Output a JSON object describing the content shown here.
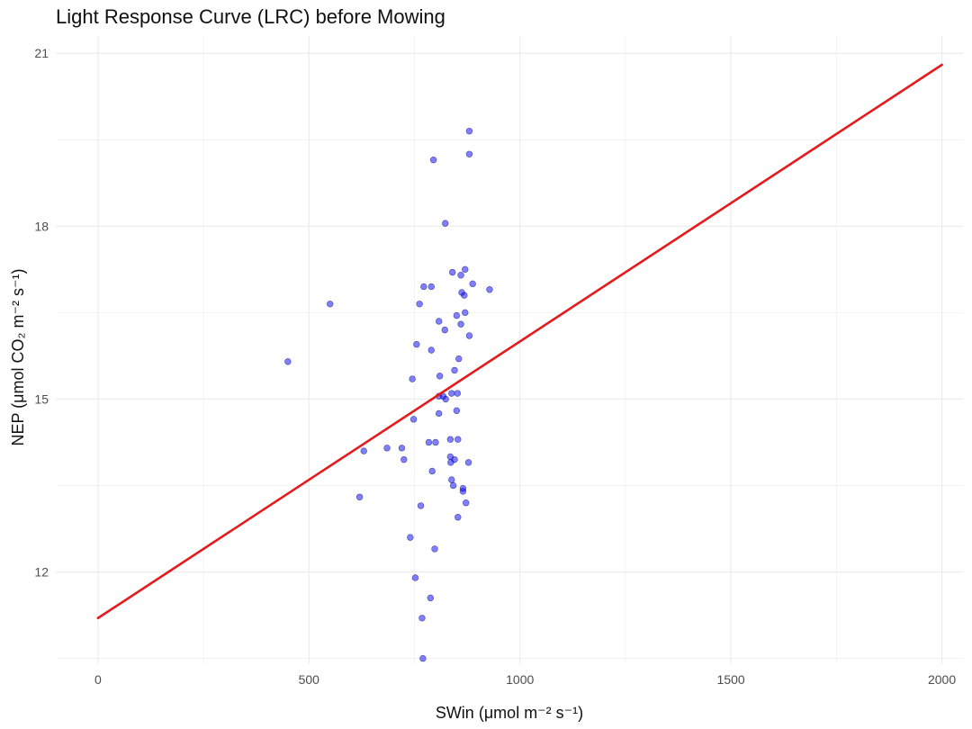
{
  "chart_data": {
    "type": "scatter",
    "title": "Light Response Curve (LRC) before Mowing",
    "xlabel": "SWin (μmol m⁻² s⁻¹)",
    "ylabel": "NEP (μmol CO₂ m⁻² s⁻¹)",
    "xlim": [
      -100,
      2050
    ],
    "ylim": [
      10.4,
      21.3
    ],
    "x_ticks": [
      0,
      500,
      1000,
      1500,
      2000
    ],
    "y_ticks": [
      12,
      15,
      18,
      21
    ],
    "grid": true,
    "colors": {
      "points": "#0000ff",
      "line": "#e41a1c",
      "grid": "#ebebeb"
    },
    "points": [
      {
        "x": 450,
        "y": 15.65
      },
      {
        "x": 550,
        "y": 16.65
      },
      {
        "x": 620,
        "y": 13.3
      },
      {
        "x": 630,
        "y": 14.1
      },
      {
        "x": 685,
        "y": 14.15
      },
      {
        "x": 720,
        "y": 14.15
      },
      {
        "x": 725,
        "y": 13.95
      },
      {
        "x": 740,
        "y": 12.6
      },
      {
        "x": 745,
        "y": 15.35
      },
      {
        "x": 748,
        "y": 14.65
      },
      {
        "x": 752,
        "y": 11.9
      },
      {
        "x": 755,
        "y": 15.95
      },
      {
        "x": 762,
        "y": 16.65
      },
      {
        "x": 765,
        "y": 13.15
      },
      {
        "x": 768,
        "y": 11.2
      },
      {
        "x": 770,
        "y": 10.5
      },
      {
        "x": 772,
        "y": 16.95
      },
      {
        "x": 784,
        "y": 14.25
      },
      {
        "x": 788,
        "y": 11.55
      },
      {
        "x": 790,
        "y": 16.95
      },
      {
        "x": 790,
        "y": 15.85
      },
      {
        "x": 792,
        "y": 13.75
      },
      {
        "x": 795,
        "y": 19.15
      },
      {
        "x": 798,
        "y": 12.4
      },
      {
        "x": 800,
        "y": 14.25
      },
      {
        "x": 808,
        "y": 16.35
      },
      {
        "x": 808,
        "y": 14.75
      },
      {
        "x": 808,
        "y": 15.05
      },
      {
        "x": 810,
        "y": 15.4
      },
      {
        "x": 818,
        "y": 15.05
      },
      {
        "x": 822,
        "y": 16.2
      },
      {
        "x": 823,
        "y": 18.05
      },
      {
        "x": 824,
        "y": 15.0
      },
      {
        "x": 835,
        "y": 14.3
      },
      {
        "x": 835,
        "y": 14.0
      },
      {
        "x": 836,
        "y": 13.9
      },
      {
        "x": 838,
        "y": 13.6
      },
      {
        "x": 838,
        "y": 15.1
      },
      {
        "x": 840,
        "y": 17.2
      },
      {
        "x": 842,
        "y": 13.5
      },
      {
        "x": 845,
        "y": 13.95
      },
      {
        "x": 845,
        "y": 15.5
      },
      {
        "x": 850,
        "y": 16.45
      },
      {
        "x": 850,
        "y": 14.8
      },
      {
        "x": 852,
        "y": 15.1
      },
      {
        "x": 853,
        "y": 12.95
      },
      {
        "x": 853,
        "y": 14.3
      },
      {
        "x": 855,
        "y": 15.7
      },
      {
        "x": 860,
        "y": 17.15
      },
      {
        "x": 860,
        "y": 16.3
      },
      {
        "x": 862,
        "y": 16.85
      },
      {
        "x": 865,
        "y": 13.45
      },
      {
        "x": 865,
        "y": 13.4
      },
      {
        "x": 868,
        "y": 16.8
      },
      {
        "x": 870,
        "y": 17.25
      },
      {
        "x": 870,
        "y": 16.5
      },
      {
        "x": 872,
        "y": 13.2
      },
      {
        "x": 878,
        "y": 13.9
      },
      {
        "x": 880,
        "y": 16.1
      },
      {
        "x": 880,
        "y": 19.25
      },
      {
        "x": 880,
        "y": 19.65
      },
      {
        "x": 888,
        "y": 17.0
      },
      {
        "x": 928,
        "y": 16.9
      }
    ],
    "fit_line": {
      "x": [
        0,
        2000
      ],
      "y": [
        11.2,
        20.8
      ]
    }
  }
}
